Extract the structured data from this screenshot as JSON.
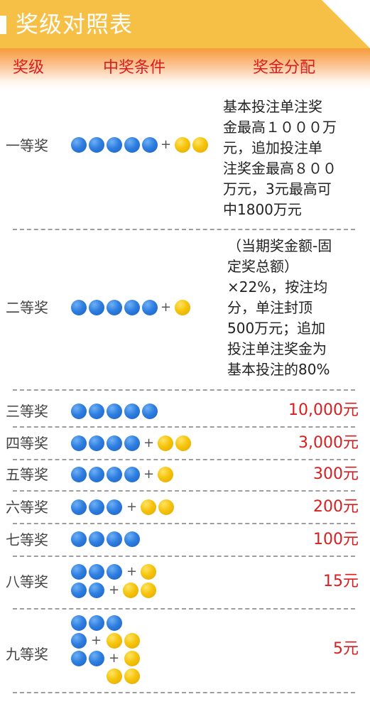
{
  "title": "奖级对照表",
  "headers": {
    "level": "奖级",
    "condition": "中奖条件",
    "prize": "奖金分配"
  },
  "colors": {
    "title_bar": "#f6c046",
    "header_red": "#d81e1e",
    "blue_ball": "#2f7fe0",
    "yellow_ball": "#f5c40b"
  },
  "rows": [
    {
      "level": "一等奖",
      "condition": "5 blue + 2 yellow",
      "prize_lines": [
        "基本投注单注奖",
        "金最高１０００万",
        "元，追加投注单",
        "注奖金最高８００",
        "万元，3元最高可",
        "中1800万元"
      ]
    },
    {
      "level": "二等奖",
      "condition": "5 blue + 1 yellow",
      "prize_lines": [
        "（当期奖金额-固",
        "定奖总额）",
        "×22%，按注均",
        "分，单注封顶",
        "500万元；追加",
        "投注单注奖金为",
        "基本投注的80%"
      ]
    },
    {
      "level": "三等奖",
      "condition": "5 blue",
      "prize": "10,000元"
    },
    {
      "level": "四等奖",
      "condition": "4 blue + 2 yellow",
      "prize": "3,000元"
    },
    {
      "level": "五等奖",
      "condition": "4 blue + 1 yellow",
      "prize": "300元"
    },
    {
      "level": "六等奖",
      "condition": "3 blue + 2 yellow",
      "prize": "200元"
    },
    {
      "level": "七等奖",
      "condition": "4 blue",
      "prize": "100元"
    },
    {
      "level": "八等奖",
      "condition": "3 blue + 1 yellow / 2 blue + 2 yellow",
      "prize": "15元"
    },
    {
      "level": "九等奖",
      "condition": "3 blue / 1 blue + 2 yellow / 2 blue + 1 yellow / 2 yellow",
      "prize": "5元"
    }
  ],
  "plus_sign": "+"
}
